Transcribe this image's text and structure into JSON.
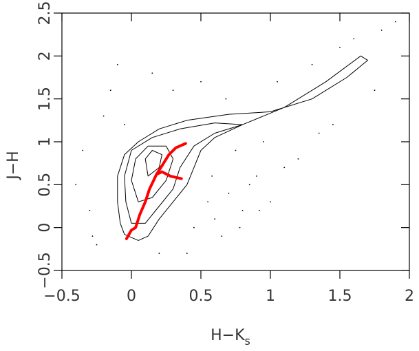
{
  "chart_data": {
    "type": "scatter",
    "xlabel": "H−K",
    "xlabel_subscript": "s",
    "ylabel": "J−H",
    "xlim": [
      -0.5,
      2
    ],
    "ylim": [
      -0.5,
      2.5
    ],
    "xticks": [
      {
        "value": -0.5,
        "label": "−0.5"
      },
      0,
      0.5,
      1,
      1.5,
      2
    ],
    "yticks": [
      {
        "value": -0.5,
        "label": "−0.5"
      },
      0,
      0.5,
      1,
      1.5,
      2,
      2.5
    ],
    "contours": [
      {
        "color": "#000000",
        "x": [
          -0.05,
          0.05,
          0.12,
          0.2,
          0.3,
          0.4,
          0.45,
          0.5,
          0.6,
          0.8,
          1.1,
          1.4,
          1.65,
          1.7,
          1.55,
          1.3,
          1.0,
          0.7,
          0.4,
          0.2,
          0.05,
          -0.05,
          -0.1,
          -0.1,
          -0.08,
          -0.05
        ],
        "y": [
          -0.08,
          -0.15,
          -0.1,
          0.1,
          0.3,
          0.5,
          0.7,
          0.9,
          1.05,
          1.2,
          1.4,
          1.7,
          2.0,
          1.95,
          1.75,
          1.5,
          1.35,
          1.32,
          1.25,
          1.15,
          1.0,
          0.85,
          0.6,
          0.3,
          0.05,
          -0.08
        ]
      },
      {
        "color": "#000000",
        "x": [
          0.0,
          0.1,
          0.2,
          0.3,
          0.35,
          0.45,
          0.6,
          0.8,
          0.6,
          0.35,
          0.15,
          0.0,
          -0.05,
          -0.04,
          0.0
        ],
        "y": [
          0.05,
          0.05,
          0.25,
          0.45,
          0.7,
          0.95,
          1.1,
          1.2,
          1.22,
          1.15,
          1.05,
          0.9,
          0.6,
          0.3,
          0.05
        ]
      },
      {
        "color": "#000000",
        "x": [
          0.05,
          0.15,
          0.25,
          0.3,
          0.25,
          0.12,
          0.03,
          0.0,
          0.05
        ],
        "y": [
          0.3,
          0.35,
          0.55,
          0.8,
          0.95,
          0.95,
          0.8,
          0.55,
          0.3
        ]
      },
      {
        "color": "#000000",
        "x": [
          0.12,
          0.2,
          0.22,
          0.15,
          0.1,
          0.12
        ],
        "y": [
          0.6,
          0.7,
          0.85,
          0.9,
          0.8,
          0.6
        ]
      }
    ],
    "tracks": [
      {
        "color": "#ff0000",
        "x": [
          -0.035,
          0.0,
          0.03,
          0.06,
          0.1,
          0.13,
          0.16,
          0.18,
          0.22,
          0.27,
          0.32,
          0.39
        ],
        "y": [
          -0.13,
          -0.03,
          0.0,
          0.15,
          0.3,
          0.45,
          0.55,
          0.62,
          0.72,
          0.85,
          0.93,
          0.98
        ]
      },
      {
        "color": "#ff0000",
        "x": [
          0.18,
          0.22,
          0.28,
          0.36
        ],
        "y": [
          0.62,
          0.65,
          0.6,
          0.57
        ]
      }
    ],
    "points": {
      "color": "#000000",
      "x": [
        -0.3,
        -0.2,
        -0.35,
        -0.15,
        -0.25,
        0.6,
        0.7,
        0.8,
        0.9,
        1.0,
        1.1,
        0.65,
        0.75,
        0.95,
        1.2,
        1.3,
        1.5,
        1.6,
        1.8,
        1.9,
        0.5,
        0.55,
        0.4,
        0.85,
        -0.4,
        -0.1,
        0.3,
        0.2,
        1.45,
        1.75,
        0.15,
        0.45,
        0.68,
        0.92,
        1.05,
        -0.28,
        -0.05,
        1.35,
        0.58,
        0.78
      ],
      "y": [
        0.2,
        1.3,
        0.9,
        1.6,
        -0.2,
        0.1,
        0.4,
        0.2,
        0.6,
        0.3,
        0.7,
        -0.1,
        0.9,
        1.0,
        0.8,
        1.9,
        2.1,
        2.2,
        2.3,
        2.4,
        1.7,
        0.3,
        -0.3,
        0.5,
        0.5,
        1.9,
        1.6,
        -0.3,
        1.2,
        1.6,
        1.8,
        0.0,
        1.5,
        0.2,
        1.7,
        -0.1,
        1.2,
        1.1,
        0.6,
        0.0
      ]
    }
  }
}
